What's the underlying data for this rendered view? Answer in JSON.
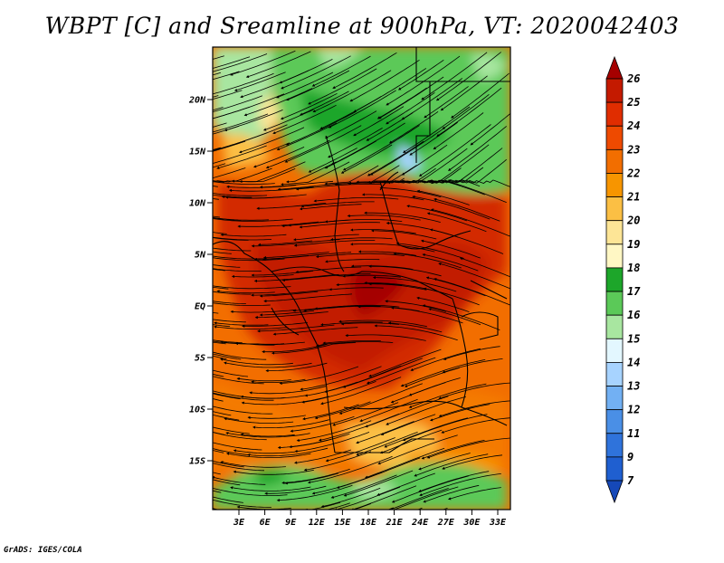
{
  "title": "WBPT [C] and Sreamline at 900hPa, VT: 2020042403",
  "credit": "GrADS: IGES/COLA",
  "map": {
    "lat_ticks": [
      "20N",
      "15N",
      "10N",
      "5N",
      "EQ",
      "5S",
      "10S",
      "15S"
    ],
    "lon_ticks": [
      "3E",
      "6E",
      "9E",
      "12E",
      "15E",
      "18E",
      "21E",
      "24E",
      "27E",
      "30E",
      "33E"
    ]
  },
  "colorbar": {
    "labels": [
      "26",
      "25",
      "24",
      "23",
      "22",
      "21",
      "20",
      "19",
      "18",
      "17",
      "16",
      "15",
      "14",
      "13",
      "12",
      "11",
      "9",
      "7"
    ],
    "colors": [
      "#a50000",
      "#c41a00",
      "#e02d00",
      "#ee4a00",
      "#f26e00",
      "#f79500",
      "#fbbf44",
      "#fde596",
      "#fff7c4",
      "#1da62a",
      "#5bc958",
      "#a8e6a0",
      "#e3f7ff",
      "#a7d3ff",
      "#72b0f3",
      "#4a8fe6",
      "#2f73db",
      "#1f5fd0",
      "#1548b8"
    ]
  }
}
